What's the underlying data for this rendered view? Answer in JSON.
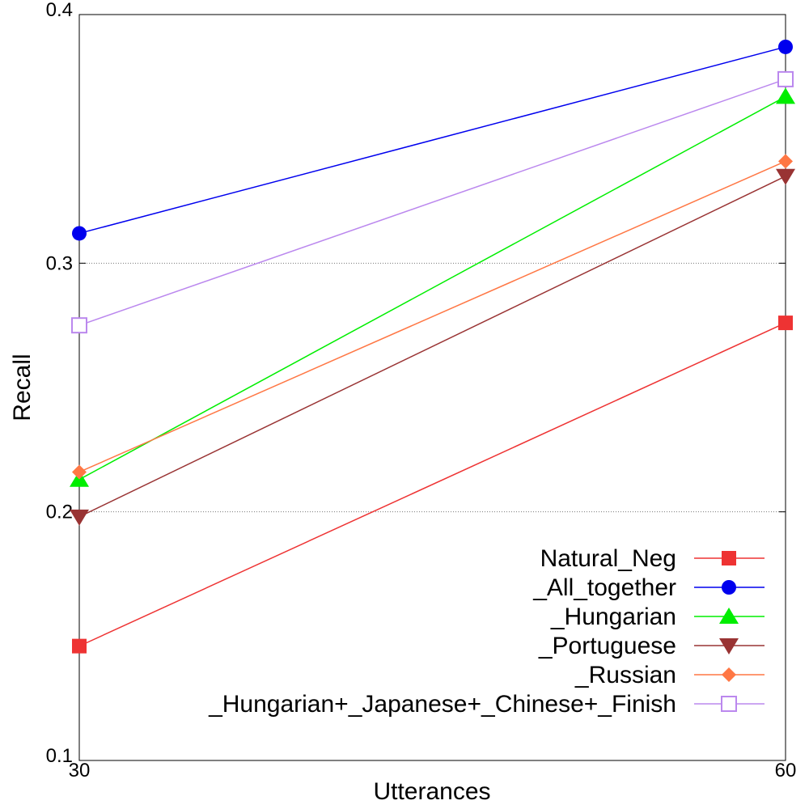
{
  "chart_data": {
    "type": "line",
    "title": "",
    "xlabel": "Utterances",
    "ylabel": "Recall",
    "x": [
      30,
      60
    ],
    "x_ticks": [
      "30",
      "60"
    ],
    "y_ticks": [
      "0.1",
      "0.2",
      "0.3",
      "0.4"
    ],
    "xlim": [
      30,
      60
    ],
    "ylim": [
      0.1,
      0.4
    ],
    "grid": "horizontal dotted",
    "legend_position": "bottom-right",
    "series": [
      {
        "name": "Natural_Neg",
        "values": [
          0.146,
          0.276
        ],
        "color": "#ee3333",
        "marker": "square"
      },
      {
        "name": "_All_together",
        "values": [
          0.312,
          0.387
        ],
        "color": "#0000ee",
        "marker": "circle"
      },
      {
        "name": "_Hungarian",
        "values": [
          0.213,
          0.367
        ],
        "color": "#00ee00",
        "marker": "triangle-up"
      },
      {
        "name": "_Portuguese",
        "values": [
          0.198,
          0.335
        ],
        "color": "#993333",
        "marker": "triangle-down"
      },
      {
        "name": "_Russian",
        "values": [
          0.216,
          0.341
        ],
        "color": "#ff7744",
        "marker": "diamond"
      },
      {
        "name": "_Hungarian+_Japanese+_Chinese+_Finish",
        "values": [
          0.275,
          0.374
        ],
        "color": "#bb88ee",
        "marker": "open-square"
      }
    ]
  }
}
